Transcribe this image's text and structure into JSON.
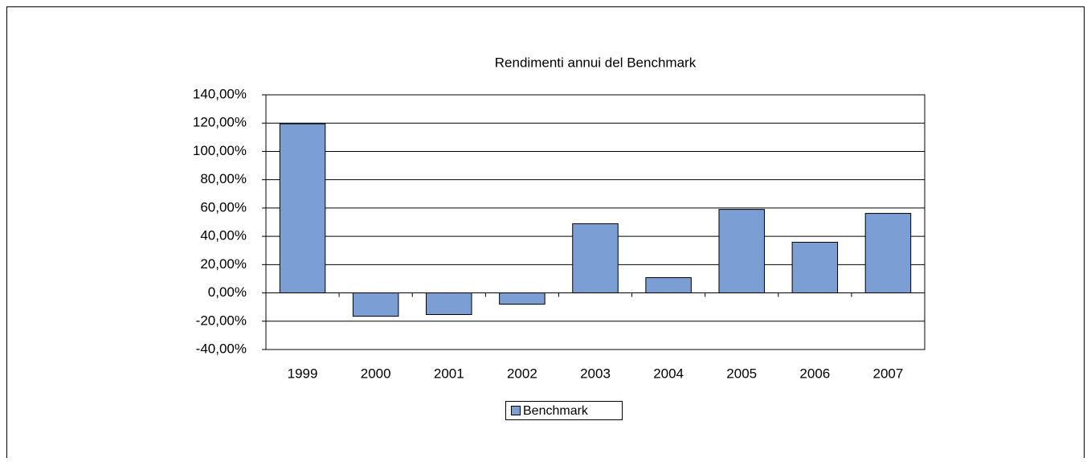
{
  "chart_data": {
    "type": "bar",
    "title": "Rendimenti annui del Benchmark",
    "categories": [
      "1999",
      "2000",
      "2001",
      "2002",
      "2003",
      "2004",
      "2005",
      "2006",
      "2007"
    ],
    "series": [
      {
        "name": "Benchmark",
        "color": "#7b9fd4",
        "values": [
          119.5,
          -16.5,
          -15.3,
          -8.0,
          48.9,
          10.8,
          59.0,
          35.8,
          56.2
        ]
      }
    ],
    "ylim": [
      -40,
      140
    ],
    "yticks": [
      {
        "value": -40,
        "label": "-40,00%"
      },
      {
        "value": -20,
        "label": "-20,00%"
      },
      {
        "value": 0,
        "label": "0,00%"
      },
      {
        "value": 20,
        "label": "20,00%"
      },
      {
        "value": 40,
        "label": "40,00%"
      },
      {
        "value": 60,
        "label": "60,00%"
      },
      {
        "value": 80,
        "label": "80,00%"
      },
      {
        "value": 100,
        "label": "100,00%"
      },
      {
        "value": 120,
        "label": "120,00%"
      },
      {
        "value": 140,
        "label": "140,00%"
      }
    ],
    "grid": true,
    "legend": "bottom"
  }
}
